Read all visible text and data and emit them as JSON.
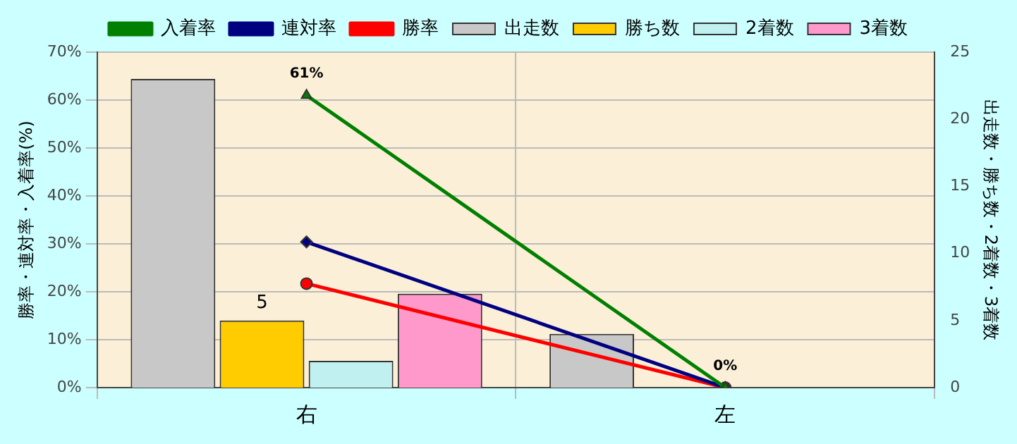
{
  "chart_data": {
    "type": "bar",
    "categories": [
      "右",
      "左"
    ],
    "series": [
      {
        "name": "出走数",
        "color": "#c8c8c8",
        "values": [
          23,
          4
        ],
        "axis": "y2"
      },
      {
        "name": "勝ち数",
        "color": "#ffcc00",
        "values": [
          5,
          0
        ],
        "axis": "y2",
        "value_labels": [
          "5",
          null
        ]
      },
      {
        "name": "2着数",
        "color": "#c0f0f0",
        "values": [
          2,
          0
        ],
        "axis": "y2"
      },
      {
        "name": "3着数",
        "color": "#ff99cc",
        "values": [
          7,
          0
        ],
        "axis": "y2"
      },
      {
        "name": "入着率",
        "type": "line",
        "color": "#008000",
        "marker": "triangle",
        "values": [
          61,
          0
        ],
        "value_labels": [
          "61%",
          "0%"
        ]
      },
      {
        "name": "連対率",
        "type": "line",
        "color": "#000080",
        "marker": "diamond",
        "values": [
          30.4,
          0
        ]
      },
      {
        "name": "勝率",
        "type": "line",
        "color": "#ff0000",
        "marker": "circle",
        "values": [
          21.7,
          0
        ]
      }
    ],
    "ylabel": "勝率・連対率・入着率(%)",
    "y2label": "出走数・勝ち数・2着数・3着数",
    "ylim": [
      0,
      70
    ],
    "yticks": [
      {
        "value": 0,
        "label": "0%"
      },
      {
        "value": 10,
        "label": "10%"
      },
      {
        "value": 20,
        "label": "20%"
      },
      {
        "value": 30,
        "label": "30%"
      },
      {
        "value": 40,
        "label": "40%"
      },
      {
        "value": 50,
        "label": "50%"
      },
      {
        "value": 60,
        "label": "60%"
      },
      {
        "value": 70,
        "label": "70%"
      }
    ],
    "y2lim": [
      0,
      25
    ],
    "y2ticks": [
      0,
      5,
      10,
      15,
      20,
      25
    ],
    "grid": true,
    "legend": "top",
    "line_style": "solid"
  }
}
